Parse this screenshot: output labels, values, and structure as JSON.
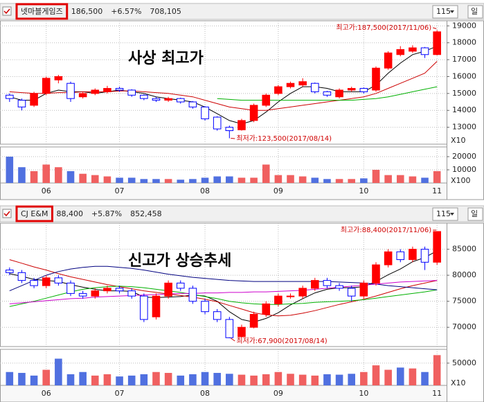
{
  "chart_data": [
    {
      "type": "candlestick",
      "header": {
        "name": "넷마블게임즈",
        "price": "186,500",
        "change": "+6.57%",
        "volume": "708,105",
        "period": "115",
        "unit": "일"
      },
      "headline": "사상 최고가",
      "max_annotation": "최고가:187,500(2017/11/06)",
      "min_annotation": "최저가:123,500(2017/08/14)",
      "price_unit": "X10",
      "volume_unit": "X100",
      "categories": [
        null,
        null,
        null,
        "06",
        null,
        null,
        null,
        null,
        null,
        "07",
        null,
        null,
        null,
        null,
        null,
        null,
        "08",
        null,
        null,
        null,
        null,
        null,
        "09",
        null,
        null,
        null,
        null,
        null,
        null,
        "10",
        null,
        null,
        null,
        null,
        null,
        "11"
      ],
      "open": [
        14900,
        14600,
        14300,
        15000,
        15800,
        15600,
        14800,
        15000,
        15100,
        15300,
        15200,
        14900,
        14700,
        14600,
        14700,
        14500,
        14200,
        13600,
        13000,
        12850,
        13400,
        14300,
        15000,
        15400,
        15500,
        15600,
        15100,
        14800,
        15200,
        15300,
        15200,
        16500,
        17300,
        17500,
        17700,
        17300
      ],
      "high": [
        15000,
        14700,
        15100,
        16000,
        16100,
        15700,
        15100,
        15300,
        15450,
        15400,
        15250,
        14950,
        14800,
        14800,
        14750,
        14550,
        14250,
        13650,
        13100,
        13500,
        14400,
        15000,
        15500,
        15700,
        15900,
        15650,
        15150,
        15300,
        15400,
        15350,
        16600,
        17500,
        17800,
        17850,
        17750,
        18750
      ],
      "low": [
        14500,
        14000,
        14200,
        14900,
        15600,
        14500,
        14700,
        14900,
        15000,
        15100,
        14800,
        14600,
        14500,
        14500,
        14400,
        14100,
        13400,
        12800,
        12350,
        12800,
        13300,
        14200,
        14900,
        15300,
        15400,
        15000,
        14800,
        14700,
        15100,
        15000,
        15100,
        16400,
        17200,
        17400,
        17100,
        17250
      ],
      "close": [
        14700,
        14200,
        15000,
        15900,
        16000,
        14700,
        15000,
        15200,
        15300,
        15200,
        14900,
        14700,
        14600,
        14700,
        14500,
        14200,
        13500,
        12900,
        12800,
        13400,
        14300,
        14900,
        15400,
        15600,
        15700,
        15100,
        14900,
        15200,
        15300,
        15100,
        16500,
        17400,
        17600,
        17700,
        17300,
        18650
      ],
      "volumes": [
        20000,
        12000,
        9000,
        14000,
        12000,
        9000,
        7000,
        6000,
        5000,
        4000,
        4000,
        3000,
        3000,
        3000,
        2500,
        3000,
        4000,
        5000,
        5000,
        4000,
        4000,
        14000,
        6000,
        6000,
        5000,
        4000,
        3000,
        3000,
        3000,
        3500,
        10000,
        6000,
        6000,
        5000,
        4000,
        9000
      ],
      "series": [
        {
          "color": "#000000",
          "values": [
            14800,
            14600,
            14600,
            15000,
            15200,
            15100,
            15100,
            15000,
            15100,
            15200,
            15100,
            15000,
            14800,
            14700,
            14600,
            14500,
            14200,
            13800,
            13400,
            13200,
            13400,
            13900,
            14500,
            15000,
            15400,
            15400,
            15300,
            15100,
            15100,
            15100,
            15500,
            16200,
            16800,
            17300,
            17500,
            17800
          ]
        },
        {
          "color": "#cc0000",
          "values": [
            15100,
            15050,
            15000,
            15000,
            15050,
            15050,
            15100,
            15100,
            15100,
            15150,
            15150,
            15100,
            15050,
            15000,
            14900,
            14800,
            14600,
            14400,
            14200,
            14100,
            14000,
            14000,
            14100,
            14200,
            14300,
            14400,
            14500,
            14600,
            14700,
            14800,
            15000,
            15300,
            15600,
            15900,
            16200,
            16900
          ]
        },
        {
          "color": "#00b000",
          "values": [
            null,
            null,
            null,
            null,
            null,
            null,
            null,
            null,
            null,
            null,
            null,
            null,
            null,
            null,
            null,
            null,
            null,
            14700,
            14650,
            14600,
            14600,
            14600,
            14600,
            14600,
            14600,
            14600,
            14600,
            14600,
            14600,
            14650,
            14700,
            14800,
            14950,
            15100,
            15250,
            15400
          ]
        }
      ],
      "up_color": "#ff0000",
      "down_color": "#0000ff",
      "ylim": [
        12000,
        19300
      ],
      "yticks": [
        13000,
        14000,
        15000,
        16000,
        17000,
        18000,
        19000
      ],
      "volume_ylim": [
        0,
        27400
      ],
      "volume_ticks": [
        10000,
        20000
      ],
      "grid": true
    },
    {
      "type": "candlestick",
      "header": {
        "name": "CJ E&M",
        "price": "88,400",
        "change": "+5.87%",
        "volume": "852,458",
        "period": "115",
        "unit": "일"
      },
      "headline": "신고가 상승추세",
      "max_annotation": "최고가:88,400(2017/11/06)",
      "min_annotation": "최저가:67,900(2017/08/14)",
      "volume_unit": "X10",
      "categories": [
        null,
        null,
        null,
        "06",
        null,
        null,
        null,
        null,
        null,
        "07",
        null,
        null,
        null,
        null,
        null,
        null,
        "08",
        null,
        null,
        null,
        null,
        null,
        "09",
        null,
        null,
        null,
        null,
        null,
        null,
        "10",
        null,
        null,
        null,
        null,
        null,
        "11"
      ],
      "open": [
        81000,
        80500,
        79000,
        78000,
        79500,
        78500,
        76500,
        76000,
        77000,
        77500,
        77000,
        76000,
        72000,
        76000,
        78500,
        77500,
        75000,
        73000,
        71500,
        68200,
        70000,
        72500,
        74500,
        76000,
        76000,
        77500,
        79000,
        78000,
        77500,
        76000,
        78500,
        82000,
        84500,
        83000,
        85000,
        82500
      ],
      "high": [
        81500,
        81000,
        79500,
        80000,
        80000,
        79000,
        77000,
        77500,
        78000,
        78000,
        77500,
        76500,
        76500,
        79000,
        79000,
        78000,
        75500,
        73500,
        72000,
        70500,
        73000,
        75000,
        76500,
        76500,
        78000,
        79500,
        79500,
        78500,
        78000,
        79000,
        82500,
        85000,
        85000,
        85500,
        85500,
        88400
      ],
      "low": [
        80000,
        78500,
        77500,
        77500,
        78000,
        76000,
        75500,
        75500,
        76500,
        76500,
        75500,
        71000,
        71500,
        75500,
        77000,
        74500,
        72500,
        71000,
        67900,
        68000,
        69800,
        72000,
        74000,
        75500,
        75500,
        77000,
        77500,
        77000,
        75000,
        75500,
        78000,
        81500,
        82500,
        82500,
        81000,
        82000
      ],
      "close": [
        80500,
        79000,
        78000,
        79500,
        78500,
        76500,
        76000,
        77000,
        77500,
        77000,
        76000,
        71500,
        76000,
        78500,
        77500,
        75000,
        73000,
        71500,
        68000,
        70000,
        72500,
        74500,
        76000,
        76000,
        77500,
        79000,
        78000,
        77500,
        76000,
        78500,
        82000,
        84500,
        83000,
        85000,
        82500,
        88400
      ],
      "volumes": [
        30000,
        28000,
        22000,
        35000,
        60000,
        25000,
        30000,
        22000,
        25000,
        20000,
        22000,
        25000,
        30000,
        28000,
        22000,
        25000,
        30000,
        28000,
        26000,
        24000,
        22000,
        25000,
        30000,
        26000,
        24000,
        22000,
        25000,
        24000,
        26000,
        30000,
        45000,
        35000,
        40000,
        38000,
        30000,
        68000
      ],
      "series": [
        {
          "color": "#000000",
          "values": [
            80300,
            79800,
            79200,
            79000,
            78800,
            78200,
            77700,
            77300,
            77000,
            77000,
            76900,
            75800,
            75700,
            75800,
            75900,
            76200,
            76000,
            75000,
            73000,
            71500,
            71000,
            71700,
            72800,
            74300,
            75500,
            76600,
            77300,
            77600,
            77600,
            77800,
            78800,
            80100,
            81200,
            82600,
            83400,
            84700
          ]
        },
        {
          "color": "#cc0000",
          "values": [
            83000,
            82300,
            81600,
            81000,
            80300,
            79700,
            79200,
            78700,
            78200,
            77800,
            77400,
            77000,
            76700,
            76400,
            76100,
            75800,
            75400,
            74900,
            74200,
            73500,
            72800,
            72400,
            72200,
            72300,
            72700,
            73200,
            73800,
            74400,
            74900,
            75400,
            76000,
            76700,
            77400,
            78000,
            78500,
            79000
          ]
        },
        {
          "color": "#00b000",
          "values": [
            74000,
            74500,
            75000,
            75600,
            76200,
            76800,
            77300,
            77600,
            77800,
            77900,
            77800,
            77600,
            77300,
            77000,
            76700,
            76300,
            75900,
            75500,
            75000,
            74700,
            74500,
            74400,
            74400,
            74500,
            74600,
            74800,
            74900,
            75000,
            75100,
            75300,
            75600,
            75900,
            76200,
            76500,
            76800,
            77200
          ]
        },
        {
          "color": "#000080",
          "values": [
            77000,
            78000,
            79000,
            80000,
            80700,
            81200,
            81500,
            81700,
            81700,
            81500,
            81300,
            81000,
            80600,
            80200,
            79900,
            79600,
            79400,
            79200,
            79000,
            78900,
            78800,
            78800,
            78800,
            78800,
            78800,
            78800,
            78800,
            78700,
            78600,
            78500,
            78300,
            78000,
            77800,
            77600,
            77400,
            77200
          ]
        },
        {
          "color": "#cc00cc",
          "values": [
            74500,
            74700,
            74900,
            75100,
            75300,
            75500,
            75600,
            75800,
            75900,
            76000,
            76100,
            76200,
            76300,
            76400,
            76500,
            76500,
            76600,
            76600,
            76700,
            76700,
            76800,
            76800,
            76900,
            77000,
            77100,
            77300,
            77500,
            77700,
            77900,
            78100,
            78300,
            78500,
            78700,
            78800,
            78900,
            79000
          ]
        }
      ],
      "up_color": "#ff0000",
      "down_color": "#0000ff",
      "ylim": [
        66300,
        90000
      ],
      "yticks": [
        70000,
        75000,
        80000,
        85000
      ],
      "volume_ylim": [
        0,
        81000
      ],
      "volume_ticks": [
        50000
      ],
      "grid": true
    }
  ]
}
